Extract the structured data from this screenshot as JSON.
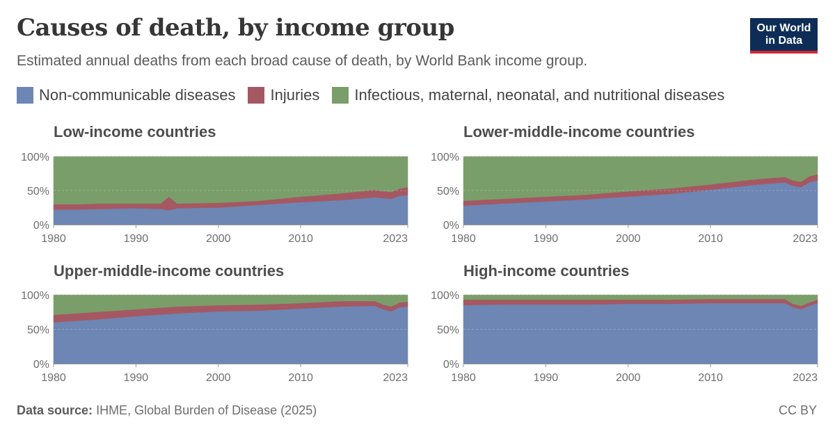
{
  "title": "Causes of death, by income group",
  "subtitle": "Estimated annual deaths from each broad cause of death, by World Bank income group.",
  "logo": {
    "line1": "Our World",
    "line2": "in Data"
  },
  "legend": [
    {
      "label": "Non-communicable diseases",
      "color": "#6d86b4"
    },
    {
      "label": "Injuries",
      "color": "#a55862"
    },
    {
      "label": "Infectious, maternal, neonatal, and nutritional diseases",
      "color": "#7a9e6a"
    }
  ],
  "footer": {
    "source_label": "Data source:",
    "source_text": "IHME, Global Burden of Disease (2025)",
    "license": "CC BY"
  },
  "chart_data": [
    {
      "type": "area",
      "stacked": "percent",
      "title": "Low-income countries",
      "x": [
        1980,
        1983,
        1986,
        1990,
        1993,
        1994,
        1995,
        2000,
        2005,
        2010,
        2012,
        2015,
        2019,
        2020,
        2021,
        2022,
        2023
      ],
      "xticks": [
        1980,
        1990,
        2000,
        2010,
        2023
      ],
      "yticks": [
        "0%",
        "50%",
        "100%"
      ],
      "ylim": [
        0,
        100
      ],
      "series": [
        {
          "name": "Non-communicable diseases",
          "values": [
            22,
            22,
            23,
            24,
            23,
            21,
            24,
            25,
            29,
            33,
            34,
            36,
            40,
            39,
            38,
            42,
            43
          ]
        },
        {
          "name": "Injuries",
          "values": [
            8,
            8,
            8,
            7,
            8,
            20,
            7,
            7,
            6,
            8,
            9,
            10,
            11,
            10,
            10,
            11,
            12
          ]
        },
        {
          "name": "Infectious, maternal, neonatal, and nutritional diseases",
          "values": [
            70,
            70,
            69,
            69,
            69,
            59,
            69,
            68,
            65,
            59,
            57,
            54,
            49,
            51,
            52,
            47,
            45
          ]
        }
      ]
    },
    {
      "type": "area",
      "stacked": "percent",
      "title": "Lower-middle-income countries",
      "x": [
        1980,
        1985,
        1990,
        1995,
        2000,
        2005,
        2010,
        2015,
        2019,
        2020,
        2021,
        2022,
        2023
      ],
      "xticks": [
        1980,
        1990,
        2000,
        2010,
        2023
      ],
      "yticks": [
        "0%",
        "50%",
        "100%"
      ],
      "ylim": [
        0,
        100
      ],
      "series": [
        {
          "name": "Non-communicable diseases",
          "values": [
            28,
            31,
            34,
            37,
            41,
            45,
            51,
            58,
            62,
            57,
            55,
            62,
            65
          ]
        },
        {
          "name": "Injuries",
          "values": [
            7,
            7,
            7,
            7,
            8,
            8,
            8,
            8,
            8,
            8,
            8,
            9,
            9
          ]
        },
        {
          "name": "Infectious, maternal, neonatal, and nutritional diseases",
          "values": [
            65,
            62,
            59,
            56,
            51,
            47,
            41,
            34,
            30,
            35,
            37,
            29,
            26
          ]
        }
      ]
    },
    {
      "type": "area",
      "stacked": "percent",
      "title": "Upper-middle-income countries",
      "x": [
        1980,
        1985,
        1990,
        1995,
        2000,
        2005,
        2010,
        2015,
        2019,
        2020,
        2021,
        2022,
        2023
      ],
      "xticks": [
        1980,
        1990,
        2000,
        2010,
        2023
      ],
      "yticks": [
        "0%",
        "50%",
        "100%"
      ],
      "ylim": [
        0,
        100
      ],
      "series": [
        {
          "name": "Non-communicable diseases",
          "values": [
            60,
            64,
            69,
            73,
            76,
            77,
            80,
            83,
            84,
            79,
            76,
            82,
            83
          ]
        },
        {
          "name": "Injuries",
          "values": [
            11,
            11,
            10,
            10,
            9,
            9,
            8,
            8,
            7,
            7,
            7,
            7,
            7
          ]
        },
        {
          "name": "Infectious, maternal, neonatal, and nutritional diseases",
          "values": [
            29,
            25,
            21,
            17,
            15,
            14,
            12,
            9,
            9,
            14,
            17,
            11,
            10
          ]
        }
      ]
    },
    {
      "type": "area",
      "stacked": "percent",
      "title": "High-income countries",
      "x": [
        1980,
        1985,
        1990,
        1995,
        2000,
        2005,
        2010,
        2015,
        2019,
        2020,
        2021,
        2022,
        2023
      ],
      "xticks": [
        1980,
        1990,
        2000,
        2010,
        2023
      ],
      "yticks": [
        "0%",
        "50%",
        "100%"
      ],
      "ylim": [
        0,
        100
      ],
      "series": [
        {
          "name": "Non-communicable diseases",
          "values": [
            85,
            86,
            86,
            86,
            87,
            87,
            88,
            88,
            88,
            82,
            79,
            84,
            88
          ]
        },
        {
          "name": "Injuries",
          "values": [
            8,
            7,
            7,
            7,
            6,
            6,
            6,
            6,
            6,
            5,
            5,
            5,
            5
          ]
        },
        {
          "name": "Infectious, maternal, neonatal, and nutritional diseases",
          "values": [
            7,
            7,
            7,
            7,
            7,
            7,
            6,
            6,
            6,
            13,
            16,
            11,
            7
          ]
        }
      ]
    }
  ]
}
